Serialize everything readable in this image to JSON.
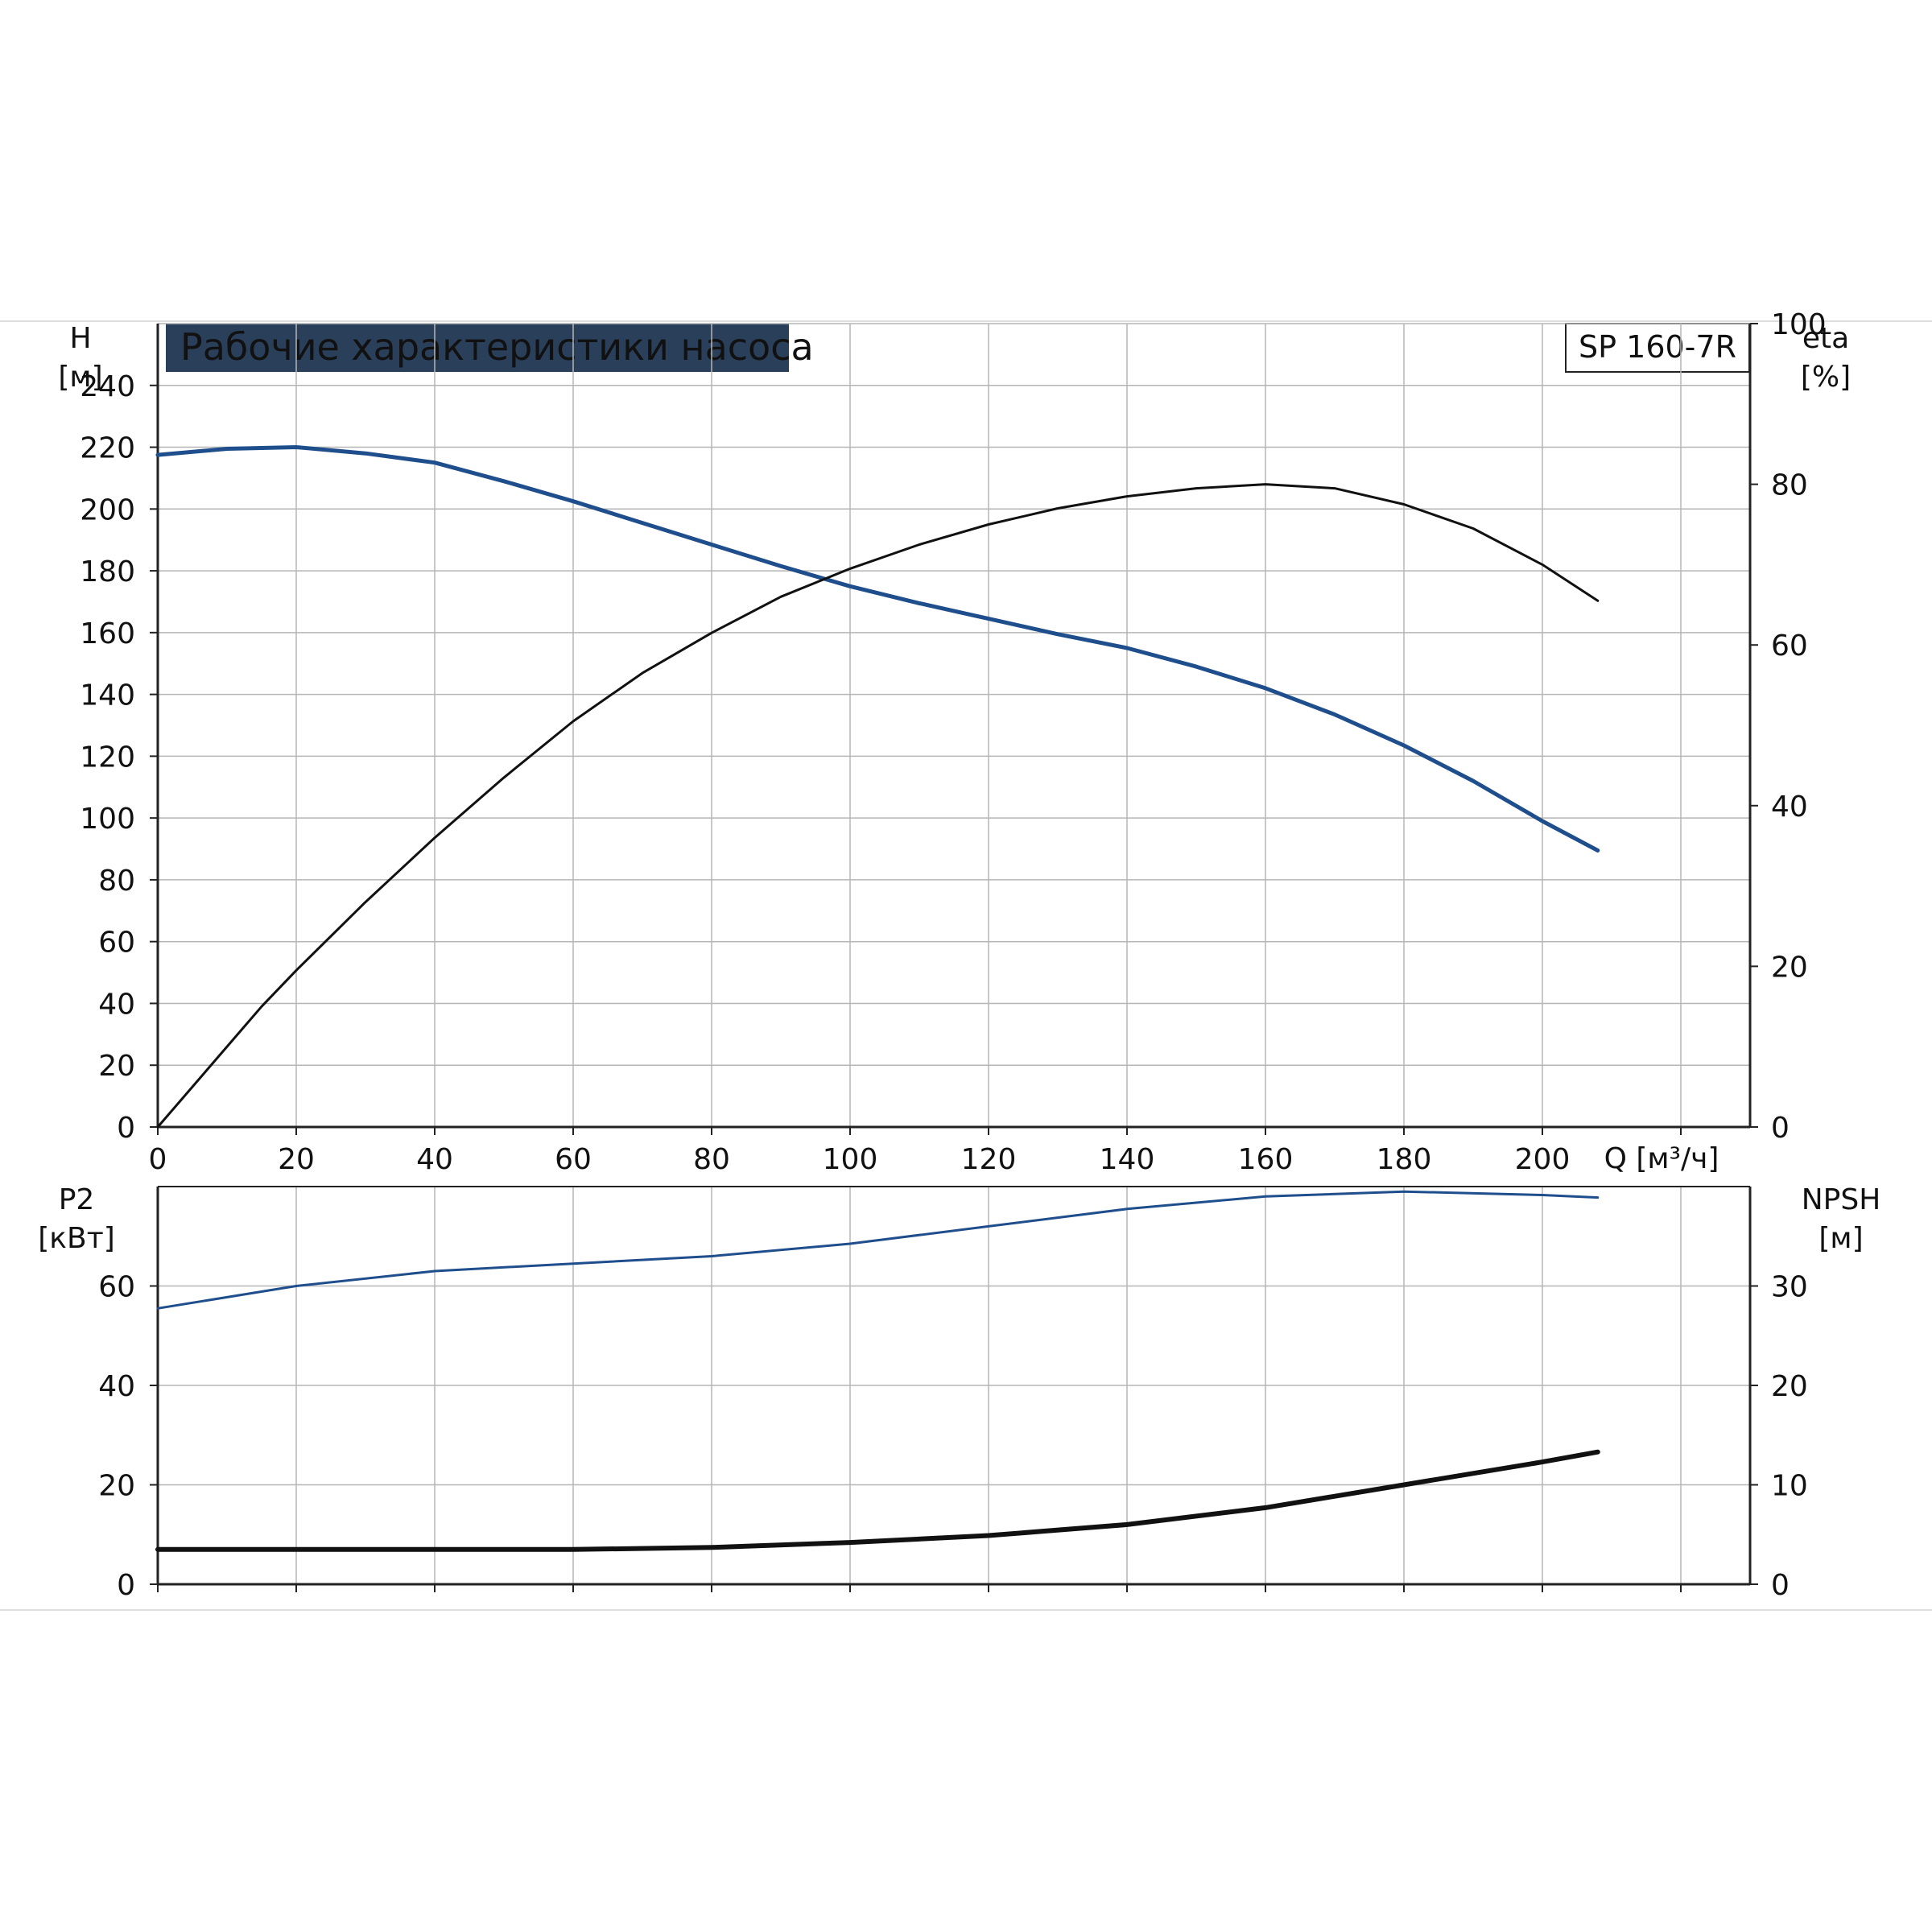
{
  "header": {
    "title": "Рабочие характеристики насоса",
    "model": "SP 160-7R"
  },
  "colors": {
    "head_curve": "#1f4e8c",
    "efficiency_curve": "#111111",
    "p2_curve": "#1f4e8c",
    "npsh_curve": "#111111",
    "grid": "#b5b5b5",
    "title_bg": "#2a3f5a",
    "title_fg": "#ffffff"
  },
  "chart_data": [
    {
      "type": "line",
      "title": "Рабочие характеристики насоса",
      "xlabel": "Q [м³/ч]",
      "ylabel_line1": "H",
      "ylabel_line2": "[м]",
      "y2label_line1": "eta",
      "y2label_line2": "[%]",
      "xlim": [
        0,
        230
      ],
      "ylim": [
        0,
        260
      ],
      "y2lim": [
        0,
        100
      ],
      "grid": true,
      "x_ticks": [
        0,
        20,
        40,
        60,
        80,
        100,
        120,
        140,
        160,
        180,
        200
      ],
      "y_ticks": [
        0,
        20,
        40,
        60,
        80,
        100,
        120,
        140,
        160,
        180,
        200,
        220,
        240
      ],
      "y2_ticks": [
        0,
        20,
        40,
        60,
        80,
        100
      ],
      "series": [
        {
          "key": "H",
          "axis": "left",
          "x": [
            0,
            10,
            20,
            30,
            40,
            50,
            60,
            70,
            80,
            90,
            100,
            110,
            120,
            130,
            140,
            150,
            160,
            170,
            180,
            190,
            200,
            208
          ],
          "y": [
            217.5,
            219.5,
            220,
            218,
            215,
            209,
            202.5,
            195.5,
            188.5,
            181.5,
            175,
            169.5,
            164.5,
            159.5,
            155,
            149,
            142,
            133.5,
            123.5,
            112,
            99,
            89.5
          ]
        },
        {
          "key": "eta",
          "axis": "right",
          "x": [
            0,
            15,
            20,
            30,
            40,
            50,
            60,
            70,
            80,
            90,
            100,
            110,
            120,
            130,
            140,
            150,
            160,
            170,
            180,
            190,
            200,
            208
          ],
          "y": [
            0,
            15,
            19.5,
            28,
            36,
            43.5,
            50.5,
            56.5,
            61.5,
            66,
            69.5,
            72.5,
            75,
            77,
            78.5,
            79.5,
            80,
            79.5,
            77.5,
            74.5,
            70,
            65.5
          ]
        }
      ]
    },
    {
      "type": "line",
      "xlim": [
        0,
        230
      ],
      "ylabel_line1": "P2",
      "ylabel_line2": "[кВт]",
      "y2label_line1": "NPSH",
      "y2label_line2": "[м]",
      "ylim": [
        0,
        80
      ],
      "y2lim": [
        0,
        40
      ],
      "grid": true,
      "y_ticks": [
        0,
        20,
        40,
        60
      ],
      "y2_ticks": [
        0,
        10,
        20,
        30
      ],
      "series": [
        {
          "key": "P2",
          "axis": "left",
          "x": [
            0,
            20,
            40,
            60,
            80,
            100,
            120,
            140,
            160,
            180,
            200,
            208
          ],
          "y": [
            55.5,
            60,
            63,
            64.5,
            66,
            68.5,
            72,
            75.5,
            78,
            79,
            78.3,
            77.8
          ]
        },
        {
          "key": "NPSH",
          "axis": "right",
          "x": [
            0,
            15,
            20,
            40,
            60,
            80,
            100,
            120,
            140,
            160,
            180,
            200,
            208
          ],
          "y": [
            3.5,
            3.5,
            3.5,
            3.5,
            3.5,
            3.7,
            4.2,
            4.9,
            6,
            7.7,
            10,
            12.3,
            13.3
          ]
        }
      ]
    }
  ]
}
